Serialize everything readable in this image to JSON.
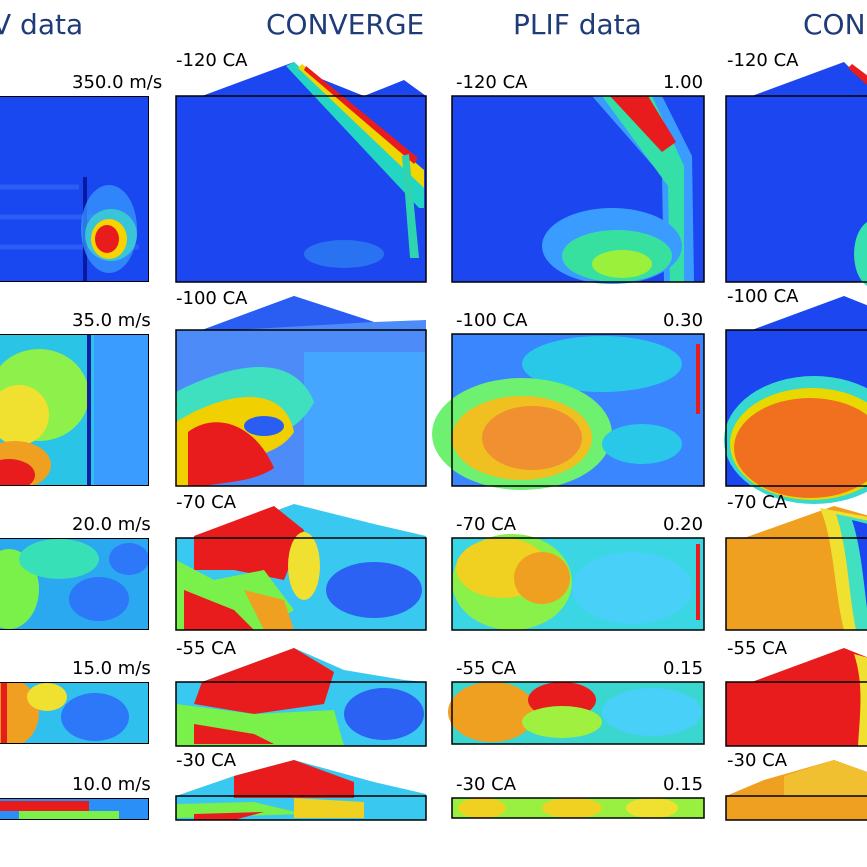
{
  "columns": [
    {
      "title": "V data"
    },
    {
      "title": "CONVERGE"
    },
    {
      "title": "PLIF data"
    },
    {
      "title": "CON"
    }
  ],
  "rows": [
    {
      "angle": "-120 CA",
      "scale": "350.0 m/s",
      "plif_max": "1.00"
    },
    {
      "angle": "-100 CA",
      "scale": "35.0 m/s",
      "plif_max": "0.30"
    },
    {
      "angle": "-70 CA",
      "scale": "20.0 m/s",
      "plif_max": "0.20"
    },
    {
      "angle": "-55 CA",
      "scale": "15.0 m/s",
      "plif_max": "0.15"
    },
    {
      "angle": "-30 CA",
      "scale": "10.0 m/s",
      "plif_max": "0.15"
    }
  ],
  "colors": {
    "title": "#1f3b78",
    "low": "#1d3ff0",
    "mid": "#22d3a0",
    "high": "#e81c1c"
  }
}
